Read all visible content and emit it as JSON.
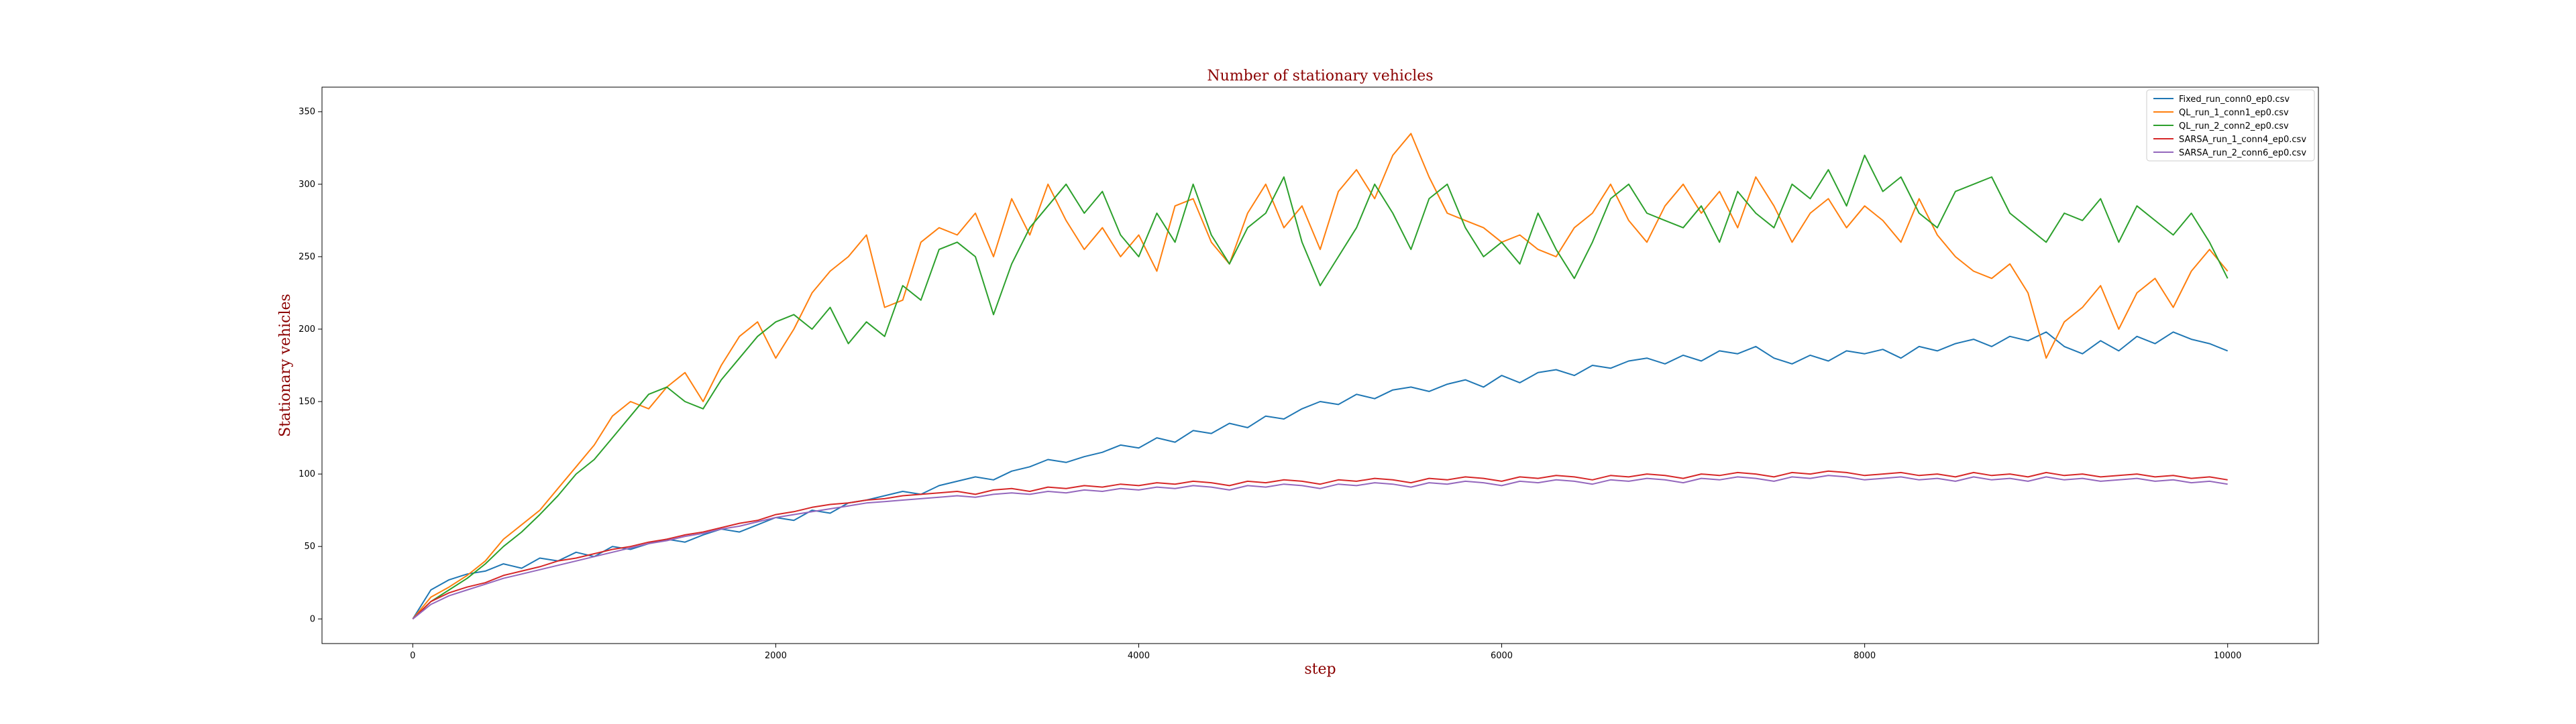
{
  "chart_data": {
    "type": "line",
    "title": "Number of stationary vehicles",
    "xlabel": "step",
    "ylabel": "Stationary vehicles",
    "xlim": [
      -500,
      10500
    ],
    "ylim": [
      -17,
      367
    ],
    "xticks": [
      "0",
      "2000",
      "4000",
      "6000",
      "8000",
      "10000"
    ],
    "yticks": [
      "0",
      "50",
      "100",
      "150",
      "200",
      "250",
      "300",
      "350"
    ],
    "grid": false,
    "legend_position": "top-right",
    "x": [
      0,
      100,
      200,
      300,
      400,
      500,
      600,
      700,
      800,
      900,
      1000,
      1100,
      1200,
      1300,
      1400,
      1500,
      1600,
      1700,
      1800,
      1900,
      2000,
      2100,
      2200,
      2300,
      2400,
      2500,
      2600,
      2700,
      2800,
      2900,
      3000,
      3100,
      3200,
      3300,
      3400,
      3500,
      3600,
      3700,
      3800,
      3900,
      4000,
      4100,
      4200,
      4300,
      4400,
      4500,
      4600,
      4700,
      4800,
      4900,
      5000,
      5100,
      5200,
      5300,
      5400,
      5500,
      5600,
      5700,
      5800,
      5900,
      6000,
      6100,
      6200,
      6300,
      6400,
      6500,
      6600,
      6700,
      6800,
      6900,
      7000,
      7100,
      7200,
      7300,
      7400,
      7500,
      7600,
      7700,
      7800,
      7900,
      8000,
      8100,
      8200,
      8300,
      8400,
      8500,
      8600,
      8700,
      8800,
      8900,
      9000,
      9100,
      9200,
      9300,
      9400,
      9500,
      9600,
      9700,
      9800,
      9900,
      10000
    ],
    "series": [
      {
        "name": "Fixed_run_conn0_ep0.csv",
        "color": "#1f77b4",
        "values": [
          0,
          20,
          27,
          31,
          33,
          38,
          35,
          42,
          40,
          46,
          43,
          50,
          48,
          52,
          55,
          53,
          58,
          62,
          60,
          65,
          70,
          68,
          75,
          73,
          80,
          82,
          85,
          88,
          86,
          92,
          95,
          98,
          96,
          102,
          105,
          110,
          108,
          112,
          115,
          120,
          118,
          125,
          122,
          130,
          128,
          135,
          132,
          140,
          138,
          145,
          150,
          148,
          155,
          152,
          158,
          160,
          157,
          162,
          165,
          160,
          168,
          163,
          170,
          172,
          168,
          175,
          173,
          178,
          180,
          176,
          182,
          178,
          185,
          183,
          188,
          180,
          176,
          182,
          178,
          185,
          183,
          186,
          180,
          188,
          185,
          190,
          193,
          188,
          195,
          192,
          198,
          188,
          183,
          192,
          185,
          195,
          190,
          198,
          193,
          190,
          185
        ]
      },
      {
        "name": "QL_run_1_conn1_ep0.csv",
        "color": "#ff7f0e",
        "values": [
          0,
          15,
          22,
          30,
          40,
          55,
          65,
          75,
          90,
          105,
          120,
          140,
          150,
          145,
          160,
          170,
          150,
          175,
          195,
          205,
          180,
          200,
          225,
          240,
          250,
          265,
          215,
          220,
          260,
          270,
          265,
          280,
          250,
          290,
          265,
          300,
          275,
          255,
          270,
          250,
          265,
          240,
          285,
          290,
          260,
          245,
          280,
          300,
          270,
          285,
          255,
          295,
          310,
          290,
          320,
          335,
          305,
          280,
          275,
          270,
          260,
          265,
          255,
          250,
          270,
          280,
          300,
          275,
          260,
          285,
          300,
          280,
          295,
          270,
          305,
          285,
          260,
          280,
          290,
          270,
          285,
          275,
          260,
          290,
          265,
          250,
          240,
          235,
          245,
          225,
          180,
          205,
          215,
          230,
          200,
          225,
          235,
          215,
          240,
          255,
          240
        ]
      },
      {
        "name": "QL_run_2_conn2_ep0.csv",
        "color": "#2ca02c",
        "values": [
          0,
          12,
          20,
          28,
          38,
          50,
          60,
          72,
          85,
          100,
          110,
          125,
          140,
          155,
          160,
          150,
          145,
          165,
          180,
          195,
          205,
          210,
          200,
          215,
          190,
          205,
          195,
          230,
          220,
          255,
          260,
          250,
          210,
          245,
          270,
          285,
          300,
          280,
          295,
          265,
          250,
          280,
          260,
          300,
          265,
          245,
          270,
          280,
          305,
          260,
          230,
          250,
          270,
          300,
          280,
          255,
          290,
          300,
          270,
          250,
          260,
          245,
          280,
          255,
          235,
          260,
          290,
          300,
          280,
          275,
          270,
          285,
          260,
          295,
          280,
          270,
          300,
          290,
          310,
          285,
          320,
          295,
          305,
          280,
          270,
          295,
          300,
          305,
          280,
          270,
          260,
          280,
          275,
          290,
          260,
          285,
          275,
          265,
          280,
          260,
          235
        ]
      },
      {
        "name": "SARSA_run_1_conn4_ep0.csv",
        "color": "#d62728",
        "values": [
          0,
          12,
          18,
          22,
          25,
          30,
          33,
          36,
          40,
          42,
          45,
          48,
          50,
          53,
          55,
          58,
          60,
          63,
          66,
          68,
          72,
          74,
          77,
          79,
          80,
          82,
          83,
          85,
          86,
          87,
          88,
          86,
          89,
          90,
          88,
          91,
          90,
          92,
          91,
          93,
          92,
          94,
          93,
          95,
          94,
          92,
          95,
          94,
          96,
          95,
          93,
          96,
          95,
          97,
          96,
          94,
          97,
          96,
          98,
          97,
          95,
          98,
          97,
          99,
          98,
          96,
          99,
          98,
          100,
          99,
          97,
          100,
          99,
          101,
          100,
          98,
          101,
          100,
          102,
          101,
          99,
          100,
          101,
          99,
          100,
          98,
          101,
          99,
          100,
          98,
          101,
          99,
          100,
          98,
          99,
          100,
          98,
          99,
          97,
          98,
          96
        ]
      },
      {
        "name": "SARSA_run_2_conn6_ep0.csv",
        "color": "#9467bd",
        "values": [
          0,
          10,
          16,
          20,
          24,
          28,
          31,
          34,
          37,
          40,
          43,
          46,
          49,
          52,
          54,
          57,
          59,
          62,
          64,
          67,
          70,
          72,
          74,
          76,
          78,
          80,
          81,
          82,
          83,
          84,
          85,
          84,
          86,
          87,
          86,
          88,
          87,
          89,
          88,
          90,
          89,
          91,
          90,
          92,
          91,
          89,
          92,
          91,
          93,
          92,
          90,
          93,
          92,
          94,
          93,
          91,
          94,
          93,
          95,
          94,
          92,
          95,
          94,
          96,
          95,
          93,
          96,
          95,
          97,
          96,
          94,
          97,
          96,
          98,
          97,
          95,
          98,
          97,
          99,
          98,
          96,
          97,
          98,
          96,
          97,
          95,
          98,
          96,
          97,
          95,
          98,
          96,
          97,
          95,
          96,
          97,
          95,
          96,
          94,
          95,
          93
        ]
      }
    ]
  }
}
